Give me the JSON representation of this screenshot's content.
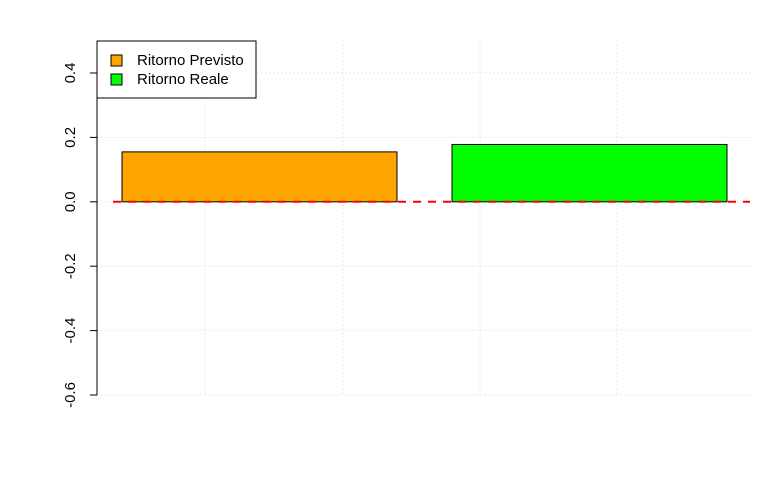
{
  "chart_data": {
    "type": "bar",
    "categories": [
      "Ritorno Previsto",
      "Ritorno Reale"
    ],
    "values": [
      0.155,
      0.178
    ],
    "colors": [
      "#FFA500",
      "#00FF00"
    ],
    "ylim": [
      -0.6,
      0.5
    ],
    "yticks": [
      -0.6,
      -0.4,
      -0.2,
      0.0,
      0.2,
      0.4
    ],
    "ytick_labels": [
      "-0.6",
      "-0.4",
      "-0.2",
      "0.0",
      "0.2",
      "0.4"
    ],
    "grid": true,
    "reference_line": {
      "y": 0,
      "color": "#FF0000",
      "style": "dashed"
    },
    "legend": {
      "placement": "top-left",
      "entries": [
        "Ritorno Previsto",
        "Ritorno Reale"
      ]
    }
  }
}
